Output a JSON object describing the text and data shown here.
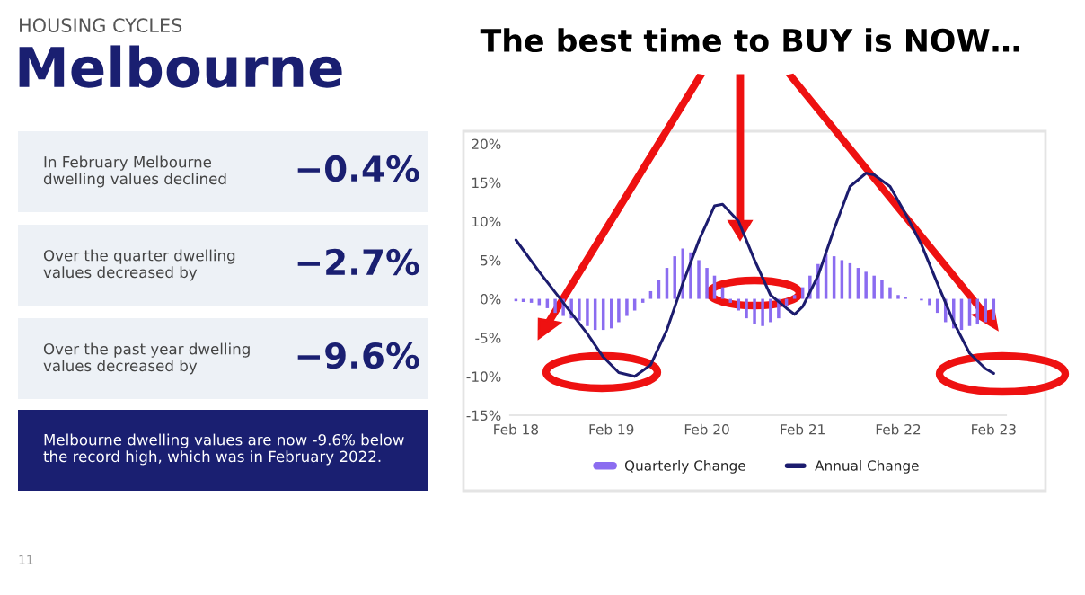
{
  "chart_data": [
    {
      "type": "other",
      "subtitle": "HOUSING CYCLES",
      "title": "Melbourne",
      "annotations": [
        "In February Melbourne dwelling values declined",
        "−0.4%",
        "Over the quarter dwelling values decreased by",
        "−2.7%",
        "Over the past year dwelling values decreased by",
        "−9.6%",
        "Melbourne dwelling values are now -9.6% below the record high, which was in February 2022.",
        "11"
      ]
    },
    {
      "type": "bar",
      "title": "The best time to BUY is NOW…",
      "x": [
        "2018-02",
        "2018-03",
        "2018-04",
        "2018-05",
        "2018-06",
        "2018-07",
        "2018-08",
        "2018-09",
        "2018-10",
        "2018-11",
        "2018-12",
        "2019-01",
        "2019-02",
        "2019-03",
        "2019-04",
        "2019-05",
        "2019-06",
        "2019-07",
        "2019-08",
        "2019-09",
        "2019-10",
        "2019-11",
        "2019-12",
        "2020-01",
        "2020-02",
        "2020-03",
        "2020-04",
        "2020-05",
        "2020-06",
        "2020-07",
        "2020-08",
        "2020-09",
        "2020-10",
        "2020-11",
        "2020-12",
        "2021-01",
        "2021-02",
        "2021-03",
        "2021-04",
        "2021-05",
        "2021-06",
        "2021-07",
        "2021-08",
        "2021-09",
        "2021-10",
        "2021-11",
        "2021-12",
        "2022-01",
        "2022-02",
        "2022-03",
        "2022-04",
        "2022-05",
        "2022-06",
        "2022-07",
        "2022-08",
        "2022-09",
        "2022-10",
        "2022-11",
        "2022-12",
        "2023-01",
        "2023-02"
      ],
      "series": [
        {
          "name": "Quarterly Change",
          "type": "bar",
          "color": "#8b6cf0",
          "values": [
            -0.3,
            -0.4,
            -0.5,
            -0.8,
            -1.2,
            -1.8,
            -2.2,
            -2.5,
            -2.8,
            -3.5,
            -4.0,
            -4.0,
            -3.8,
            -3.0,
            -2.2,
            -1.5,
            -0.5,
            1.0,
            2.5,
            4.0,
            5.5,
            6.5,
            6.0,
            5.0,
            4.0,
            3.0,
            1.5,
            -0.5,
            -1.5,
            -2.5,
            -3.2,
            -3.5,
            -3.0,
            -2.5,
            -1.0,
            0.5,
            1.5,
            3.0,
            4.5,
            5.8,
            5.5,
            5.0,
            4.6,
            4.0,
            3.5,
            3.0,
            2.5,
            1.5,
            0.5,
            0.2,
            0.0,
            -0.2,
            -0.8,
            -1.8,
            -3.0,
            -3.8,
            -4.0,
            -3.5,
            -3.3,
            -3.0,
            -2.7
          ]
        },
        {
          "name": "Annual Change",
          "type": "line",
          "color": "#1c1c6e",
          "x": [
            "2018-02",
            "2018-05",
            "2018-08",
            "2018-11",
            "2019-01",
            "2019-03",
            "2019-05",
            "2019-07",
            "2019-09",
            "2019-11",
            "2020-01",
            "2020-03",
            "2020-04",
            "2020-06",
            "2020-08",
            "2020-10",
            "2020-12",
            "2021-01",
            "2021-02",
            "2021-04",
            "2021-06",
            "2021-08",
            "2021-10",
            "2021-11",
            "2022-01",
            "2022-03",
            "2022-05",
            "2022-07",
            "2022-09",
            "2022-11",
            "2023-01",
            "2023-02"
          ],
          "values": [
            7.6,
            3.5,
            -0.5,
            -4.5,
            -7.5,
            -9.5,
            -10.0,
            -8.5,
            -4.0,
            2.0,
            7.5,
            12.0,
            12.2,
            10.0,
            5.0,
            0.5,
            -1.2,
            -2.0,
            -1.0,
            3.0,
            9.0,
            14.5,
            16.2,
            16.0,
            14.5,
            11.0,
            7.0,
            2.0,
            -3.0,
            -7.0,
            -9.0,
            -9.6
          ]
        }
      ],
      "xlim": [
        "2018-01-10",
        "2023-03-20"
      ],
      "xticks": [
        {
          "value": "2018-02",
          "label": "Feb 18"
        },
        {
          "value": "2019-02",
          "label": "Feb 19"
        },
        {
          "value": "2020-02",
          "label": "Feb 20"
        },
        {
          "value": "2021-02",
          "label": "Feb 21"
        },
        {
          "value": "2022-02",
          "label": "Feb 22"
        },
        {
          "value": "2023-02",
          "label": "Feb 23"
        }
      ],
      "ylim": [
        -15,
        20
      ],
      "yticks": [
        {
          "value": -15,
          "label": "-15%"
        },
        {
          "value": -10,
          "label": "-10%"
        },
        {
          "value": -5,
          "label": "-5%"
        },
        {
          "value": 0,
          "label": "0%"
        },
        {
          "value": 5,
          "label": "5%"
        },
        {
          "value": 10,
          "label": "10%"
        },
        {
          "value": 15,
          "label": "15%"
        },
        {
          "value": 20,
          "label": "20%"
        }
      ],
      "legend": "bottom",
      "grid": false
    }
  ]
}
